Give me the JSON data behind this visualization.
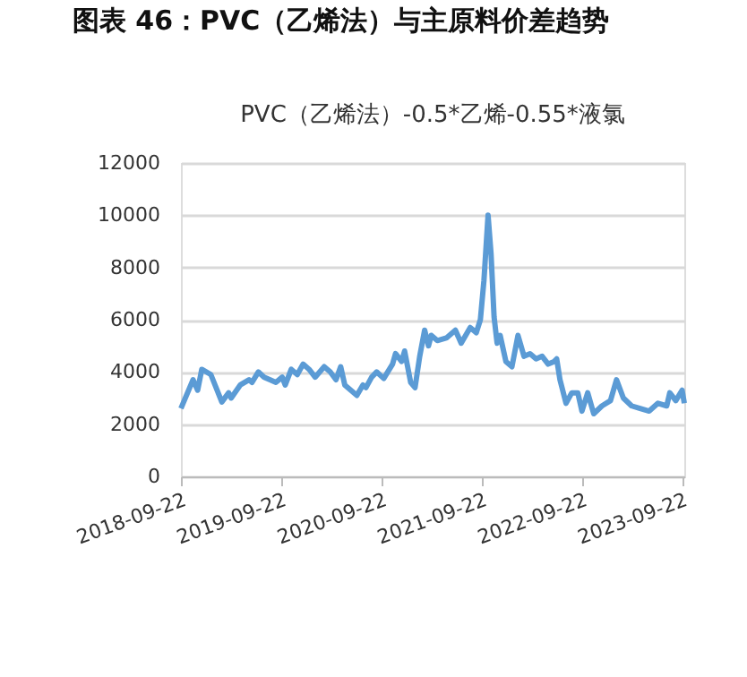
{
  "chart_data": {
    "type": "line",
    "title": "图表 46：PVC（乙烯法）与主原料价差趋势",
    "subtitle": "PVC（乙烯法）-0.5*乙烯-0.55*液氯",
    "x": [
      "2018-09-22",
      "2018-11-05",
      "2018-11-22",
      "2018-12-07",
      "2019-01-09",
      "2019-02-18",
      "2019-03-15",
      "2019-03-24",
      "2019-04-26",
      "2019-05-28",
      "2019-06-08",
      "2019-07-01",
      "2019-07-22",
      "2019-08-12",
      "2019-09-03",
      "2019-09-26",
      "2019-10-07",
      "2019-10-29",
      "2019-11-20",
      "2019-12-11",
      "2020-01-02",
      "2020-01-24",
      "2020-02-26",
      "2020-03-19",
      "2020-04-09",
      "2020-04-26",
      "2020-05-11",
      "2020-06-02",
      "2020-06-24",
      "2020-07-16",
      "2020-07-27",
      "2020-08-17",
      "2020-09-04",
      "2020-09-30",
      "2020-11-01",
      "2020-11-12",
      "2020-12-04",
      "2020-12-15",
      "2021-01-06",
      "2021-01-22",
      "2021-02-08",
      "2021-02-26",
      "2021-03-12",
      "2021-03-22",
      "2021-04-13",
      "2021-05-16",
      "2021-06-18",
      "2021-07-09",
      "2021-08-11",
      "2021-09-02",
      "2021-09-17",
      "2021-09-30",
      "2021-10-15",
      "2021-10-26",
      "2021-11-06",
      "2021-11-17",
      "2021-11-28",
      "2021-12-19",
      "2022-01-10",
      "2022-02-01",
      "2022-02-23",
      "2022-03-17",
      "2022-04-08",
      "2022-04-30",
      "2022-05-22",
      "2022-06-13",
      "2022-06-22",
      "2022-07-04",
      "2022-07-26",
      "2022-08-16",
      "2022-09-07",
      "2022-09-22",
      "2022-10-13",
      "2022-11-04",
      "2022-12-04",
      "2023-01-04",
      "2023-01-26",
      "2023-02-20",
      "2023-03-22",
      "2023-04-22",
      "2023-05-25",
      "2023-06-26",
      "2023-07-28",
      "2023-08-08",
      "2023-08-30",
      "2023-09-22",
      "2023-09-30"
    ],
    "series": [
      {
        "color": "#5b9bd5",
        "values": [
          2600,
          3700,
          3300,
          4100,
          3900,
          2850,
          3200,
          3000,
          3500,
          3700,
          3600,
          4000,
          3800,
          3700,
          3600,
          3800,
          3500,
          4100,
          3900,
          4300,
          4100,
          3800,
          4200,
          4000,
          3700,
          4200,
          3500,
          3300,
          3100,
          3500,
          3400,
          3800,
          4000,
          3750,
          4300,
          4700,
          4400,
          4800,
          3600,
          3400,
          4600,
          5600,
          5000,
          5400,
          5200,
          5300,
          5600,
          5100,
          5700,
          5500,
          6000,
          7500,
          10000,
          8500,
          6100,
          5100,
          5400,
          4400,
          4200,
          5400,
          4600,
          4700,
          4500,
          4600,
          4300,
          4400,
          4500,
          3700,
          2800,
          3200,
          3200,
          2500,
          3200,
          2400,
          2700,
          2900,
          3700,
          3000,
          2700,
          2600,
          2500,
          2800,
          2700,
          3200,
          2900,
          3300,
          2800
        ]
      }
    ],
    "xlim": [
      "2018-09-22",
      "2023-09-30"
    ],
    "xticks": [
      "2018-09-22",
      "2019-09-22",
      "2020-09-22",
      "2021-09-22",
      "2022-09-22",
      "2023-09-22"
    ],
    "ylim": [
      0,
      12000
    ],
    "yticks": [
      0,
      2000,
      4000,
      6000,
      8000,
      10000,
      12000
    ],
    "grid": "y"
  }
}
